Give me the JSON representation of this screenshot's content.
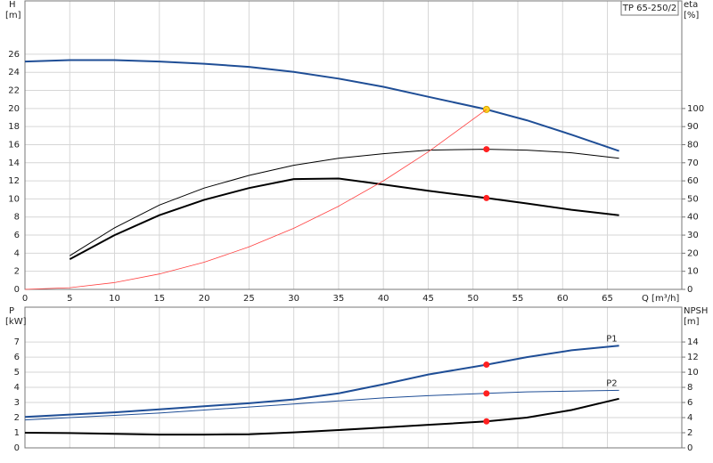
{
  "chart_data": [
    {
      "type": "line",
      "title": "TP 65-250/2",
      "xlabel": "Q [m³/h]",
      "ylabel": "H",
      "yunit": "[m]",
      "y2label": "eta",
      "y2unit": "[%]",
      "x": [
        0,
        5,
        10,
        15,
        20,
        25,
        30,
        35,
        40,
        45,
        51.5,
        56,
        61,
        66.3
      ],
      "xlim": [
        0,
        73.3
      ],
      "xticks": [
        0,
        5,
        10,
        15,
        20,
        25,
        30,
        35,
        40,
        45,
        50,
        55,
        60,
        65
      ],
      "ylim": [
        0,
        31.9
      ],
      "yticks": [
        0,
        2,
        4,
        6,
        8,
        10,
        12,
        14,
        16,
        18,
        20,
        22,
        24,
        26
      ],
      "y2lim": [
        0,
        159.5
      ],
      "y2ticks": [
        0,
        10,
        20,
        30,
        40,
        50,
        60,
        70,
        80,
        90,
        100
      ],
      "grid": true,
      "show_xtick_labels": true,
      "duty_x": 51.5,
      "series": [
        {
          "color": "#1f4e96",
          "width": 2,
          "axis": "y",
          "marker_color": "#ffd21f",
          "values": [
            25.2,
            25.35,
            25.35,
            25.2,
            24.95,
            24.6,
            24.05,
            23.3,
            22.4,
            21.3,
            19.9,
            18.7,
            17.1,
            15.3
          ]
        },
        {
          "color": "#000000",
          "width": 1,
          "axis": "y2",
          "marker_color": "#ff2020",
          "values": [
            null,
            18.6,
            34,
            46.6,
            56,
            63,
            68.6,
            72.5,
            75,
            77,
            77.5,
            77,
            75.5,
            72.5
          ]
        },
        {
          "color": "#000000",
          "width": 2,
          "axis": "y2",
          "marker_color": "#ff2020",
          "values": [
            null,
            16.7,
            30,
            41,
            49.5,
            56,
            61,
            61.3,
            58,
            54.5,
            50.5,
            47.5,
            44,
            41
          ]
        },
        {
          "color": "#ff4040",
          "width": 0.8,
          "axis": "y",
          "values": [
            0,
            0.19,
            0.75,
            1.7,
            3,
            4.7,
            6.75,
            9.2,
            12,
            15.2,
            19.9,
            null,
            null,
            null
          ]
        }
      ]
    },
    {
      "type": "line",
      "ylabel": "P",
      "yunit": "[kW]",
      "y2label": "NPSH",
      "y2unit": "[m]",
      "x": [
        0,
        5,
        10,
        15,
        20,
        25,
        30,
        35,
        40,
        45,
        51.5,
        56,
        61,
        66.3
      ],
      "xlim": [
        0,
        73.3
      ],
      "xticks": [
        0,
        5,
        10,
        15,
        20,
        25,
        30,
        35,
        40,
        45,
        50,
        55,
        60,
        65
      ],
      "ylim": [
        0,
        9.3
      ],
      "yticks": [
        0,
        1,
        2,
        3,
        4,
        5,
        6,
        7
      ],
      "y2lim": [
        0,
        18.6
      ],
      "y2ticks": [
        0,
        2,
        4,
        6,
        8,
        10,
        12,
        14
      ],
      "grid": true,
      "show_xtick_labels": false,
      "duty_x": 51.5,
      "series": [
        {
          "name": "P1",
          "color": "#1f4e96",
          "width": 2,
          "axis": "y",
          "marker_color": "#ff2020",
          "values": [
            2.05,
            2.2,
            2.35,
            2.55,
            2.75,
            2.95,
            3.2,
            3.6,
            4.2,
            4.85,
            5.5,
            6.0,
            6.45,
            6.75
          ]
        },
        {
          "name": "P2",
          "color": "#1f4e96",
          "width": 1,
          "axis": "y",
          "marker_color": "#ff2020",
          "values": [
            1.85,
            2.0,
            2.15,
            2.3,
            2.5,
            2.7,
            2.9,
            3.1,
            3.3,
            3.45,
            3.6,
            3.7,
            3.75,
            3.8
          ]
        },
        {
          "color": "#000000",
          "width": 2,
          "axis": "y2",
          "marker_color": "#ff2020",
          "values": [
            2.0,
            1.95,
            1.85,
            1.75,
            1.75,
            1.8,
            2.05,
            2.35,
            2.7,
            3.05,
            3.5,
            4.0,
            5.0,
            6.5
          ]
        }
      ]
    }
  ]
}
